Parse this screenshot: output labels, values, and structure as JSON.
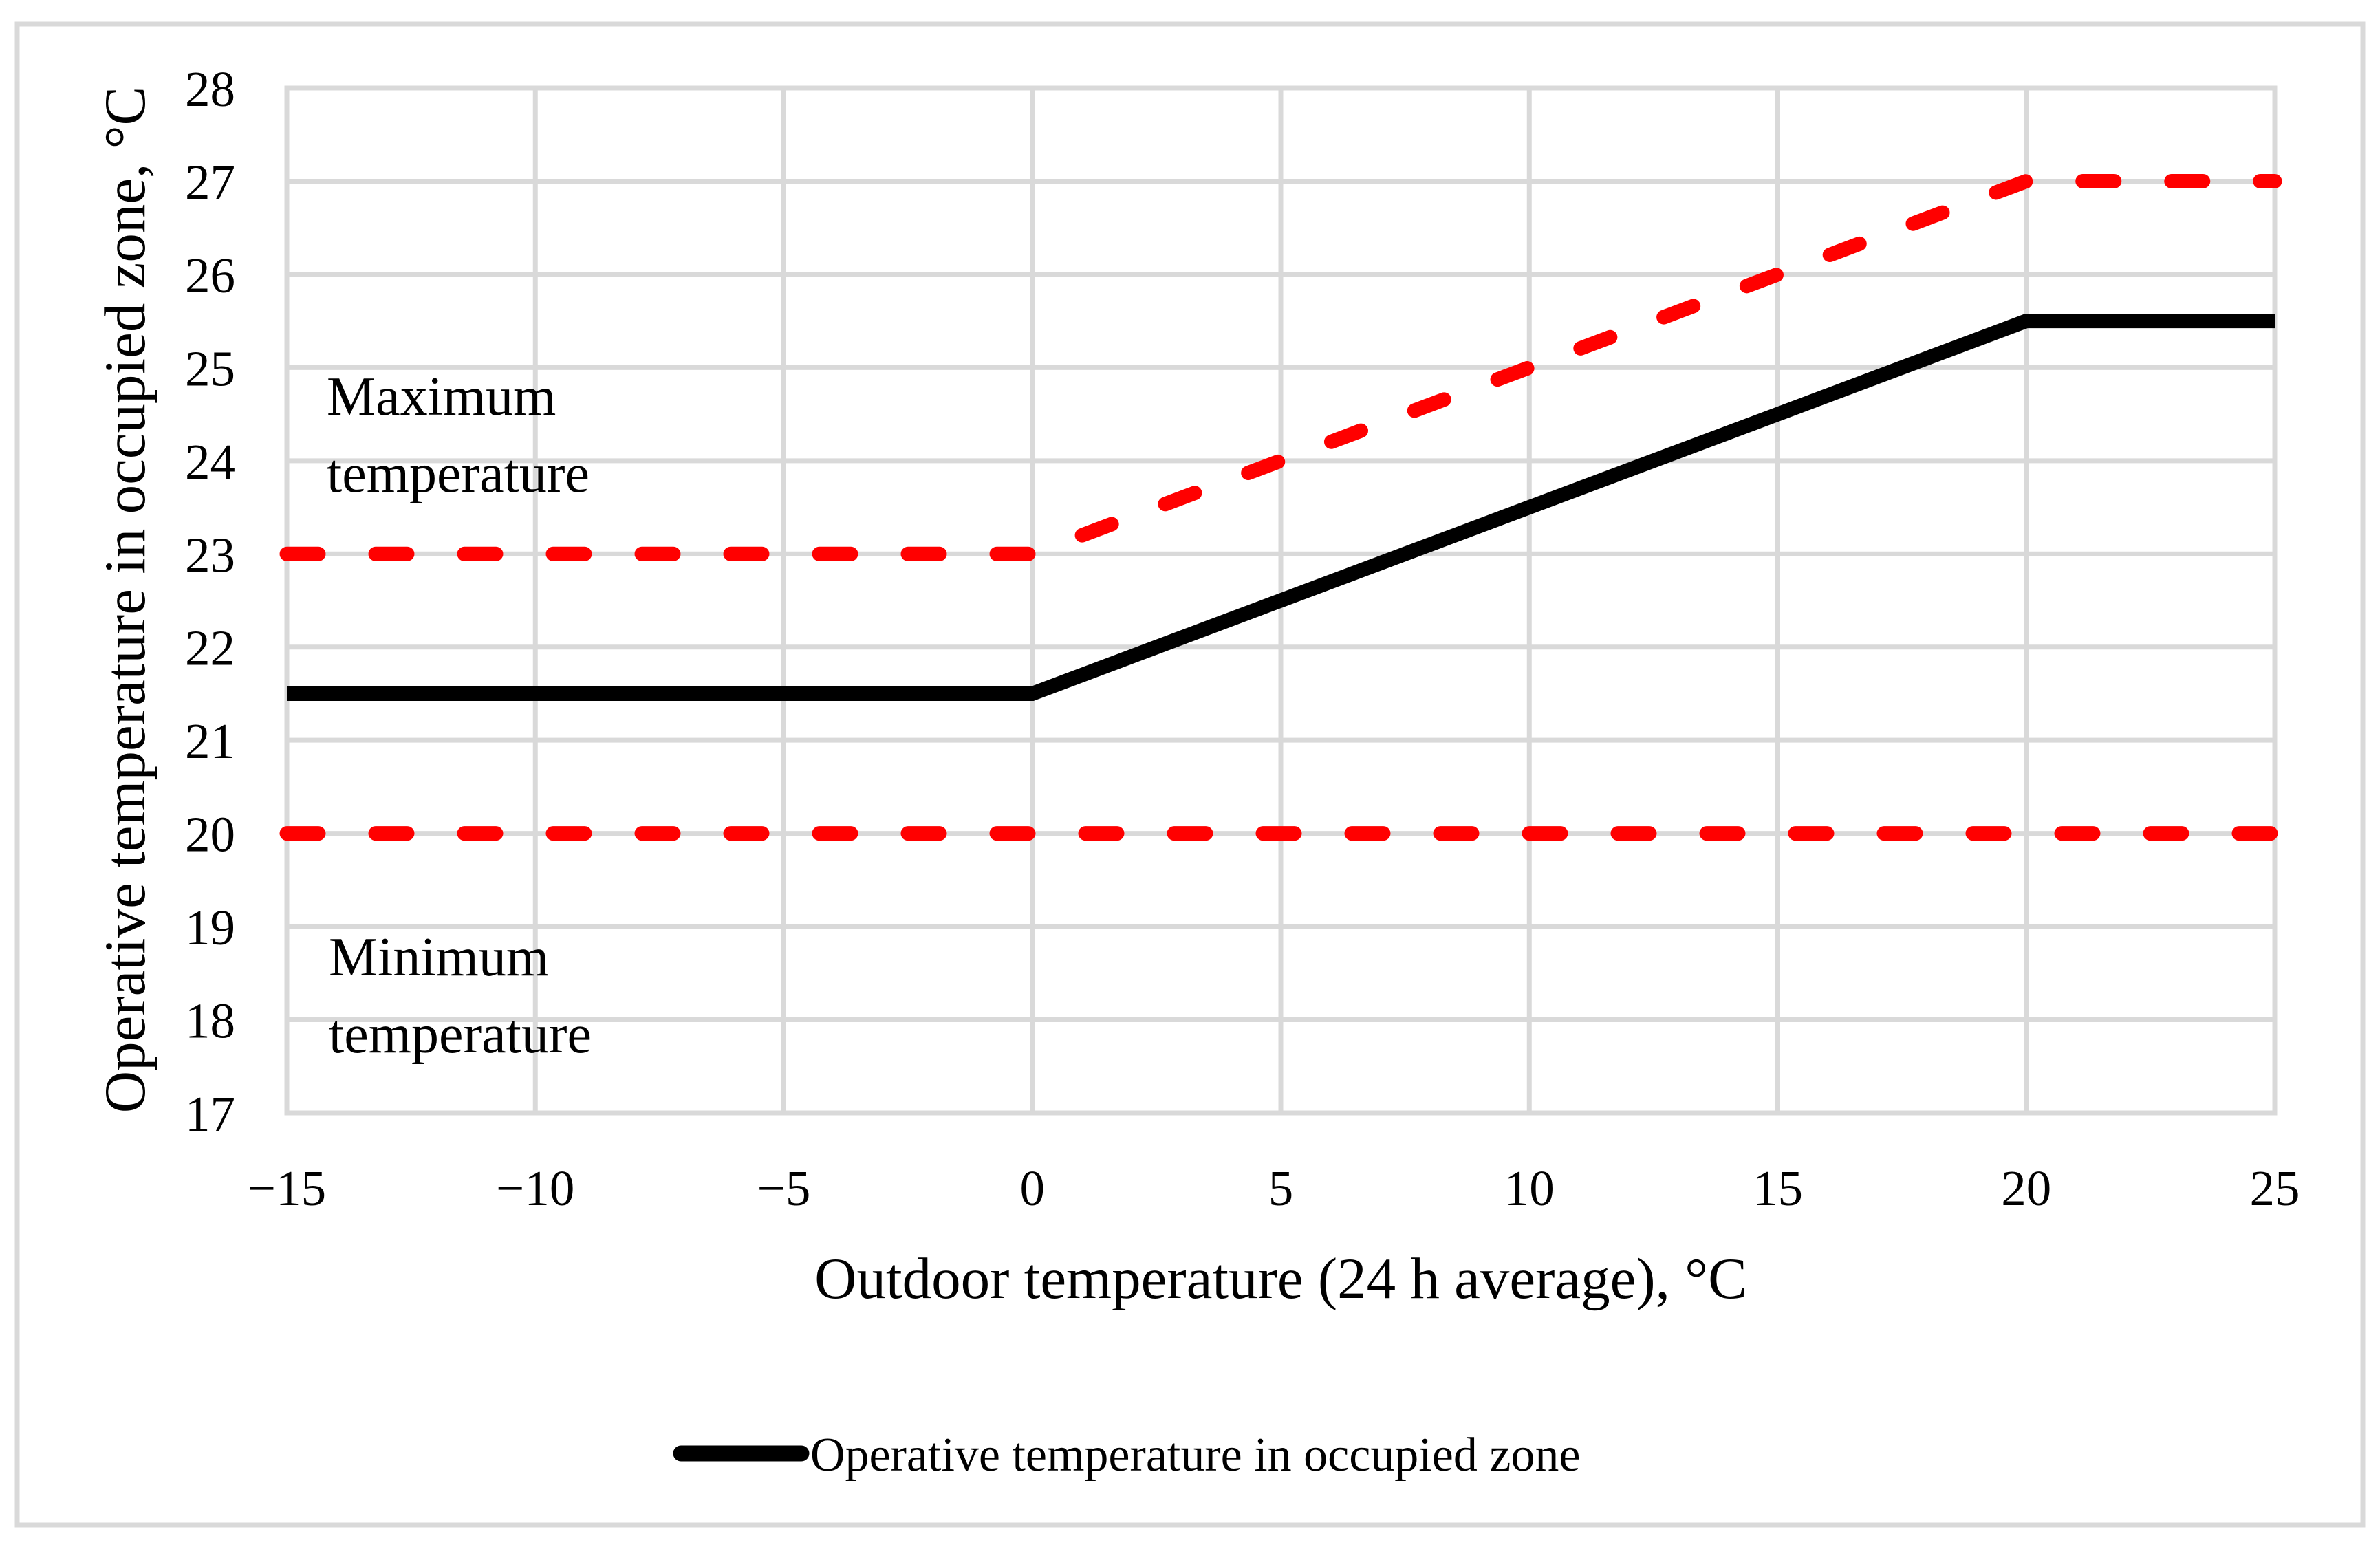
{
  "figure": {
    "background": "#ffffff",
    "border_color": "#d9d9d9"
  },
  "chart_data": {
    "type": "line",
    "title": "",
    "xlabel": "Outdoor temperature (24 h average), °C",
    "ylabel": "Operative temperature in occupied zone, °C",
    "xlim": [
      -15,
      25
    ],
    "ylim": [
      17,
      28
    ],
    "grid": "on",
    "grid_color": "#d9d9d9",
    "x_ticks": [
      -15,
      -10,
      -5,
      0,
      5,
      10,
      15,
      20,
      25
    ],
    "x_tick_labels": [
      "−15",
      "−10",
      "−5",
      "0",
      "5",
      "10",
      "15",
      "20",
      "25"
    ],
    "y_ticks": [
      17,
      18,
      19,
      20,
      21,
      22,
      23,
      24,
      25,
      26,
      27,
      28
    ],
    "y_tick_labels": [
      "17",
      "18",
      "19",
      "20",
      "21",
      "22",
      "23",
      "24",
      "25",
      "26",
      "27",
      "28"
    ],
    "series": [
      {
        "name": "Maximum temperature",
        "color": "#ff0000",
        "line_style": "dashed",
        "points": [
          [
            -15,
            23
          ],
          [
            0,
            23
          ],
          [
            20,
            27
          ],
          [
            25,
            27
          ]
        ]
      },
      {
        "name": "Operative temperature in occupied zone",
        "color": "#000000",
        "line_style": "solid",
        "points": [
          [
            -15,
            21.5
          ],
          [
            0,
            21.5
          ],
          [
            20,
            25.5
          ],
          [
            25,
            25.5
          ]
        ]
      },
      {
        "name": "Minimum temperature",
        "color": "#ff0000",
        "line_style": "dashed",
        "points": [
          [
            -15,
            20
          ],
          [
            25,
            20
          ]
        ]
      }
    ],
    "annotations": [
      {
        "lines": [
          "Maximum",
          "temperature"
        ]
      },
      {
        "lines": [
          "Minimum",
          "temperature"
        ]
      }
    ],
    "legend": {
      "position": "bottom",
      "label": "Operative temperature in occupied zone",
      "marker_color": "#000000"
    }
  }
}
